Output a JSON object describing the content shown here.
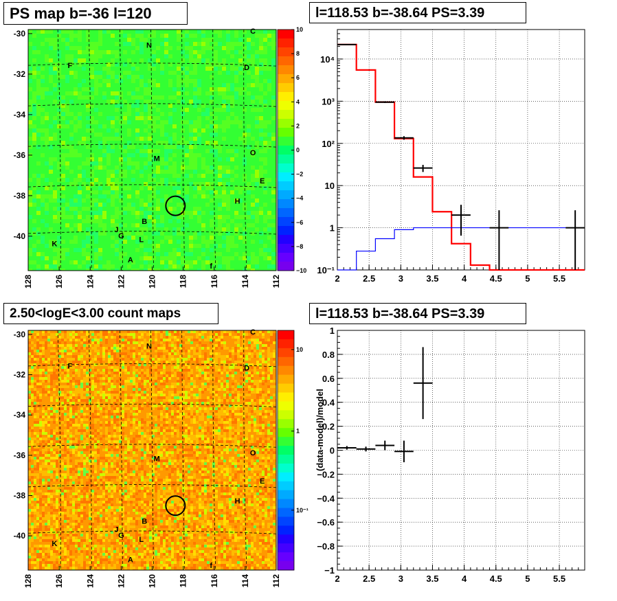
{
  "panels": {
    "ps_map": {
      "title": "PS map b=-36 l=120",
      "xticks": [
        "128",
        "126",
        "124",
        "122",
        "120",
        "118",
        "116",
        "114",
        "112"
      ],
      "yticks": [
        "-30",
        "-32",
        "-34",
        "-36",
        "-38",
        "-40"
      ],
      "colorbar_ticks": [
        "10",
        "8",
        "6",
        "4",
        "2",
        "0",
        "−2",
        "−4",
        "−6",
        "−8",
        "−10"
      ],
      "labels": [
        "C",
        "N",
        "F",
        "D",
        "O",
        "M",
        "E",
        "H",
        "J",
        "B",
        "G",
        "L",
        "K",
        "A",
        "f"
      ]
    },
    "count_map": {
      "title": "2.50<logE<3.00 count maps",
      "xticks": [
        "128",
        "126",
        "124",
        "122",
        "120",
        "118",
        "116",
        "114",
        "112"
      ],
      "yticks": [
        "-30",
        "-32",
        "-34",
        "-36",
        "-38",
        "-40"
      ],
      "colorbar_ticks": [
        "10",
        "1",
        "10⁻¹"
      ],
      "labels": [
        "C",
        "N",
        "F",
        "D",
        "O",
        "M",
        "E",
        "H",
        "J",
        "B",
        "G",
        "L",
        "K",
        "A",
        "f"
      ]
    },
    "spectrum": {
      "title": "l=118.53 b=-38.64 PS=3.39"
    },
    "residual": {
      "title": "l=118.53 b=-38.64 PS=3.39"
    }
  },
  "chart_data": [
    {
      "type": "heatmap",
      "title": "PS map b=-36 l=120",
      "xlim": [
        128,
        112
      ],
      "ylim": [
        -41.7,
        -29.8
      ],
      "xticks": [
        128,
        126,
        124,
        122,
        120,
        118,
        116,
        114,
        112
      ],
      "yticks": [
        -30,
        -32,
        -34,
        -36,
        -38,
        -40
      ],
      "zlim": [
        -10,
        10
      ],
      "colorbar_ticks": [
        10,
        8,
        6,
        4,
        2,
        0,
        -2,
        -4,
        -6,
        -8,
        -10
      ],
      "source_labels": [
        "C",
        "N",
        "F",
        "D",
        "O",
        "M",
        "E",
        "H",
        "J",
        "B",
        "G",
        "L",
        "K",
        "A",
        "f"
      ],
      "marker_circle": {
        "l": 118.5,
        "b": -38.5
      }
    },
    {
      "type": "line",
      "title": "l=118.53 b=-38.64 PS=3.39",
      "xlim": [
        2,
        5.9
      ],
      "ylim": [
        0.1,
        50000
      ],
      "log_y": true,
      "grid": true,
      "xticks": [
        2,
        2.5,
        3,
        3.5,
        4,
        4.5,
        5,
        5.5
      ],
      "yticks": [
        "10⁻¹",
        "1",
        "10",
        "10²",
        "10³",
        "10⁴"
      ],
      "series": [
        {
          "color": "#ff0000",
          "style": "step",
          "edges": [
            2,
            2.3,
            2.6,
            2.9,
            3.2,
            3.5,
            3.8,
            4.1,
            4.4,
            4.7,
            5.0,
            5.3,
            5.6,
            5.9
          ],
          "values": [
            22000,
            5500,
            950,
            130,
            16,
            2.4,
            0.42,
            0.13,
            0.1,
            0.1,
            0.1,
            0.1,
            0.1
          ]
        },
        {
          "color": "#0000ff",
          "style": "step",
          "edges": [
            2,
            2.3,
            2.6,
            2.9,
            3.2,
            3.5,
            3.8,
            4.1,
            4.4,
            4.7,
            5.0,
            5.3,
            5.6,
            5.9
          ],
          "values": [
            0.1,
            0.28,
            0.55,
            0.9,
            1.0,
            1.0,
            1.0,
            1.0,
            1.0,
            1.0,
            1.0,
            1.0,
            1.0
          ]
        },
        {
          "color": "#000000",
          "style": "errorbar",
          "points": [
            {
              "x": 2.15,
              "y": 22000,
              "xerr": 0.15,
              "ylo": 21700,
              "yhi": 22300
            },
            {
              "x": 2.75,
              "y": 950,
              "xerr": 0.15,
              "ylo": 910,
              "yhi": 990
            },
            {
              "x": 3.05,
              "y": 135,
              "xerr": 0.15,
              "ylo": 122,
              "yhi": 148
            },
            {
              "x": 3.35,
              "y": 26,
              "xerr": 0.15,
              "ylo": 21,
              "yhi": 31
            },
            {
              "x": 3.95,
              "y": 2.0,
              "xerr": 0.15,
              "ylo": 0.65,
              "yhi": 3.5
            },
            {
              "x": 4.55,
              "y": 1.0,
              "xerr": 0.15,
              "ylo": 0.1,
              "yhi": 2.6
            },
            {
              "x": 5.75,
              "y": 1.0,
              "xerr": 0.15,
              "ylo": 0.1,
              "yhi": 2.6
            }
          ]
        }
      ]
    },
    {
      "type": "scatter",
      "title": "l=118.53 b=-38.64 PS=3.39",
      "ylabel": "(data-model)/model",
      "xlim": [
        2,
        5.9
      ],
      "ylim": [
        -1,
        1
      ],
      "grid": true,
      "xticks": [
        2,
        2.5,
        3,
        3.5,
        4,
        4.5,
        5,
        5.5
      ],
      "yticks": [
        -1,
        -0.8,
        -0.6,
        -0.4,
        -0.2,
        0,
        0.2,
        0.4,
        0.6,
        0.8,
        1
      ],
      "points": [
        {
          "x": 2.15,
          "y": 0.02,
          "xerr": 0.15,
          "yerr": 0.015
        },
        {
          "x": 2.45,
          "y": 0.01,
          "xerr": 0.15,
          "yerr": 0.02
        },
        {
          "x": 2.75,
          "y": 0.04,
          "xerr": 0.15,
          "yerr": 0.04
        },
        {
          "x": 3.05,
          "y": -0.01,
          "xerr": 0.15,
          "yerr": 0.09
        },
        {
          "x": 3.35,
          "y": 0.56,
          "xerr": 0.15,
          "yerr": 0.3
        }
      ]
    }
  ]
}
